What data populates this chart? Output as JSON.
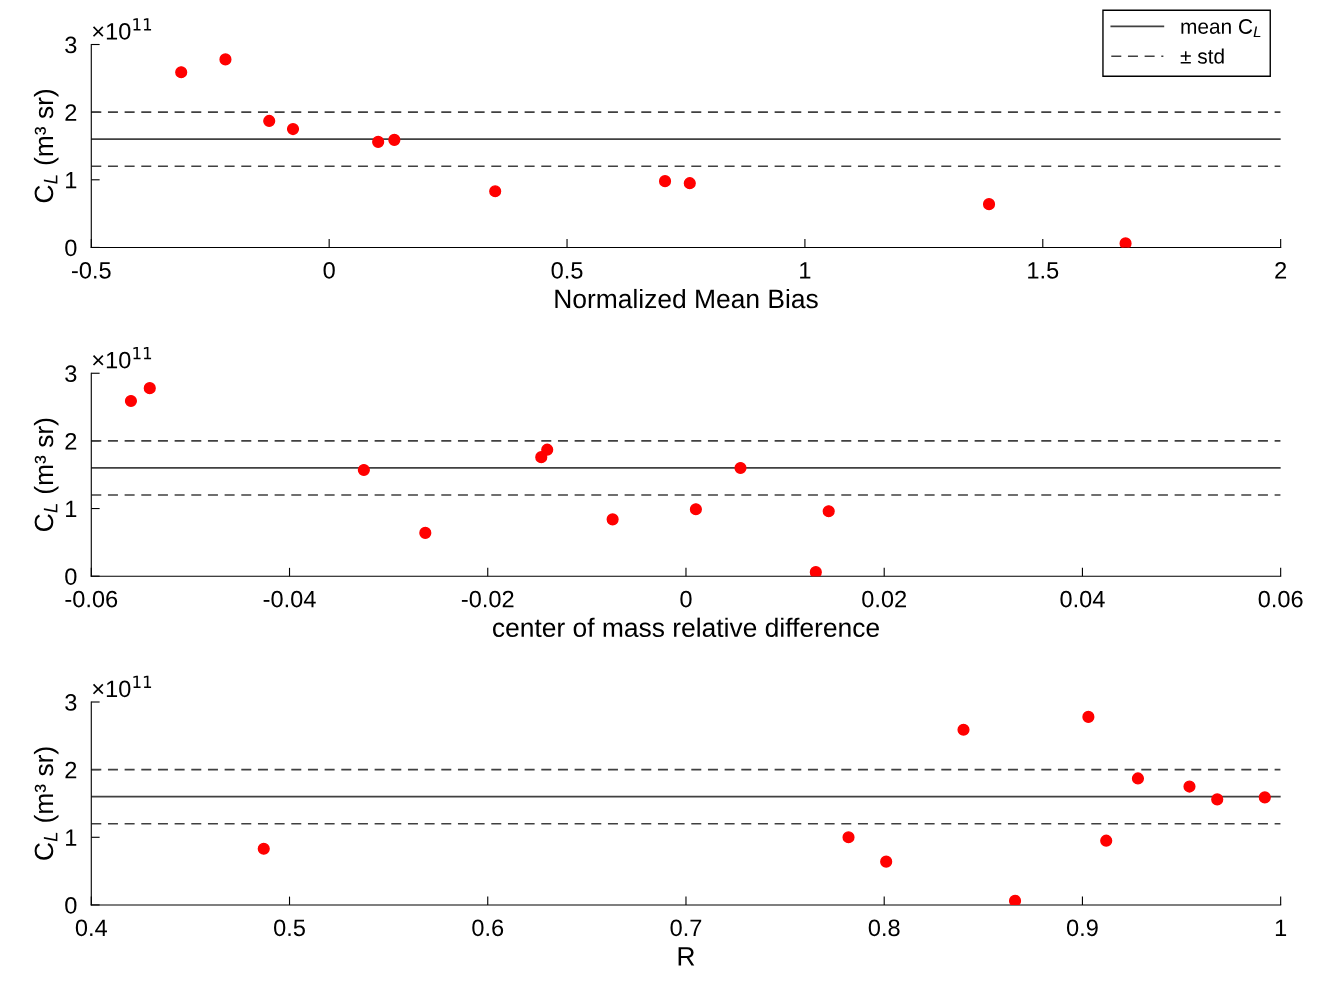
{
  "chart_data": [
    {
      "type": "scatter",
      "xlabel": "Normalized Mean Bias",
      "ylabel": "C$_{L}$ (m³ sr)",
      "annotations": [
        "×10$^{11}$"
      ],
      "xlim": [
        -0.5,
        2
      ],
      "xticks": [
        -0.5,
        0,
        0.5,
        1,
        1.5,
        2
      ],
      "ylim": [
        0,
        3
      ],
      "yticks": [
        0,
        1,
        2,
        3
      ],
      "grid": false,
      "legend": "top right",
      "marker": "circle",
      "series": [
        {
          "color": "#ff0000",
          "x": [
            -0.311,
            -0.218,
            -0.126,
            -0.076,
            0.103,
            0.137,
            0.349,
            0.706,
            0.758,
            1.387,
            1.674
          ],
          "values": [
            2.59,
            2.78,
            1.87,
            1.75,
            1.56,
            1.59,
            0.83,
            0.98,
            0.95,
            0.64,
            0.06
          ]
        }
      ],
      "ref_lines": [
        {
          "axis": "y",
          "value": 1.6,
          "label": "mean C$_{L}$",
          "color": "#404040",
          "line_style": "solid"
        },
        {
          "axis": "y",
          "value": 2.0,
          "label": "± std",
          "color": "#404040",
          "line_style": "dashed"
        },
        {
          "axis": "y",
          "value": 1.2,
          "color": "#404040",
          "line_style": "dashed"
        }
      ]
    },
    {
      "type": "scatter",
      "xlabel": "center of mass relative difference",
      "ylabel": "C$_{L}$ (m³ sr)",
      "annotations": [
        "×10$^{11}$"
      ],
      "xlim": [
        -0.06,
        0.06
      ],
      "xticks": [
        -0.06,
        -0.04,
        -0.02,
        0,
        0.02,
        0.04,
        0.06
      ],
      "ylim": [
        0,
        3
      ],
      "yticks": [
        0,
        1,
        2,
        3
      ],
      "grid": false,
      "marker": "circle",
      "series": [
        {
          "color": "#ff0000",
          "x": [
            -0.056,
            -0.0541,
            -0.0325,
            -0.0263,
            -0.0146,
            -0.014,
            -0.0074,
            0.001,
            0.0055,
            0.0144,
            0.0131
          ],
          "values": [
            2.59,
            2.78,
            1.57,
            0.64,
            1.76,
            1.87,
            0.84,
            0.99,
            1.6,
            0.96,
            0.06
          ]
        }
      ],
      "ref_lines": [
        {
          "axis": "y",
          "value": 1.6,
          "color": "#404040",
          "line_style": "solid"
        },
        {
          "axis": "y",
          "value": 2.0,
          "color": "#404040",
          "line_style": "dashed"
        },
        {
          "axis": "y",
          "value": 1.2,
          "color": "#404040",
          "line_style": "dashed"
        }
      ]
    },
    {
      "type": "scatter",
      "xlabel": "R",
      "ylabel": "C$_{L}$ (m³ sr)",
      "annotations": [
        "×10$^{11}$"
      ],
      "xlim": [
        0.4,
        1
      ],
      "xticks": [
        0.4,
        0.5,
        0.6,
        0.7,
        0.8,
        0.9,
        1
      ],
      "ylim": [
        0,
        3
      ],
      "yticks": [
        0,
        1,
        2,
        3
      ],
      "grid": false,
      "marker": "circle",
      "series": [
        {
          "color": "#ff0000",
          "x": [
            0.487,
            0.782,
            0.801,
            0.84,
            0.866,
            0.903,
            0.912,
            0.928,
            0.954,
            0.968,
            0.992
          ],
          "values": [
            0.83,
            1.0,
            0.64,
            2.59,
            0.06,
            2.78,
            0.95,
            1.87,
            1.75,
            1.56,
            1.59
          ]
        }
      ],
      "ref_lines": [
        {
          "axis": "y",
          "value": 1.6,
          "color": "#404040",
          "line_style": "solid"
        },
        {
          "axis": "y",
          "value": 2.0,
          "color": "#404040",
          "line_style": "dashed"
        },
        {
          "axis": "y",
          "value": 1.2,
          "color": "#404040",
          "line_style": "dashed"
        }
      ]
    }
  ]
}
